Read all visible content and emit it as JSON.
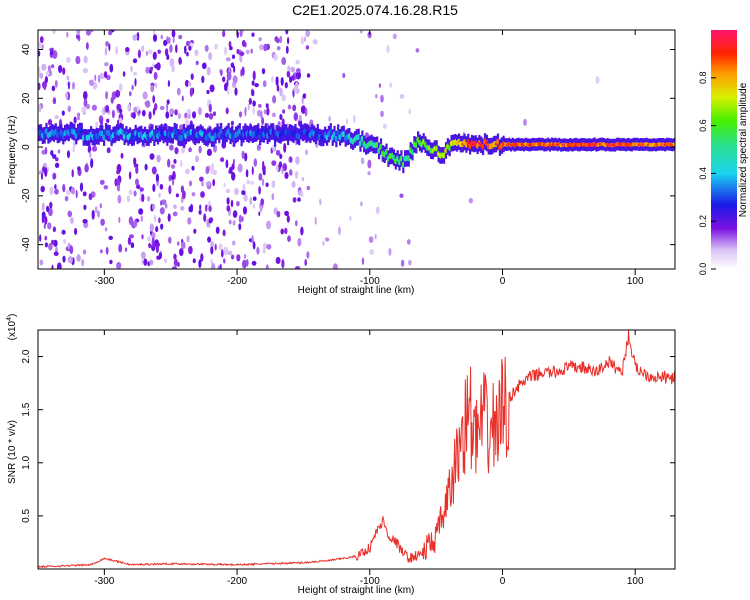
{
  "title": "C2E1.2025.074.16.28.R15",
  "chart_data": [
    {
      "type": "heatmap",
      "xlabel": "Height of straight line (km)",
      "ylabel": "Frequency (Hz)",
      "xlim": [
        -350,
        130
      ],
      "ylim": [
        -50,
        48
      ],
      "xticks": [
        -300,
        -200,
        -100,
        0,
        100
      ],
      "yticks": [
        -40,
        -20,
        0,
        20,
        40
      ],
      "colorbar": {
        "label": "Normalized spectral amplitude",
        "range": [
          0,
          1
        ],
        "ticks": [
          "0.0",
          "0.2",
          "0.4",
          "0.6",
          "0.8"
        ]
      },
      "ridge": {
        "x": [
          -350,
          -300,
          -250,
          -200,
          -150,
          -130,
          -110,
          -95,
          -85,
          -75,
          -65,
          -55,
          -45,
          -35,
          -25,
          -10,
          0,
          50,
          100,
          130
        ],
        "frequency_hz": [
          6,
          5,
          5,
          5,
          5,
          5,
          3,
          0,
          -4,
          -6,
          2,
          0,
          -3,
          3,
          1,
          1,
          1,
          1,
          1,
          1
        ],
        "amplitude": [
          0.35,
          0.4,
          0.38,
          0.35,
          0.3,
          0.4,
          0.5,
          0.55,
          0.6,
          0.55,
          0.6,
          0.65,
          0.7,
          0.75,
          0.95,
          0.9,
          0.85,
          0.9,
          0.9,
          0.85
        ]
      }
    },
    {
      "type": "line",
      "xlabel": "Height of straight line (km)",
      "ylabel": "SNR (10 * v/v)",
      "y_multiplier": "(x10",
      "y_multiplier_exp": "4",
      "y_multiplier_close": ")",
      "xlim": [
        -350,
        130
      ],
      "ylim": [
        0,
        2.25
      ],
      "xticks": [
        -300,
        -200,
        -100,
        0,
        100
      ],
      "yticks": [
        "0.5",
        "1.0",
        "1.5",
        "2.0"
      ],
      "series": [
        {
          "color": "#e8302a",
          "x": [
            -350,
            -310,
            -300,
            -280,
            -250,
            -200,
            -150,
            -130,
            -110,
            -100,
            -95,
            -90,
            -85,
            -80,
            -75,
            -70,
            -60,
            -50,
            -45,
            -40,
            -35,
            -30,
            -25,
            -20,
            -15,
            -10,
            -5,
            0,
            10,
            20,
            30,
            40,
            50,
            60,
            70,
            80,
            90,
            95,
            100,
            110,
            120,
            130
          ],
          "y": [
            0.02,
            0.04,
            0.1,
            0.04,
            0.05,
            0.04,
            0.06,
            0.08,
            0.12,
            0.2,
            0.35,
            0.45,
            0.3,
            0.25,
            0.15,
            0.1,
            0.15,
            0.3,
            0.5,
            0.7,
            1.0,
            1.3,
            1.5,
            1.2,
            1.4,
            1.3,
            1.35,
            1.5,
            1.7,
            1.8,
            1.85,
            1.85,
            1.9,
            1.9,
            1.85,
            1.95,
            1.85,
            2.2,
            1.9,
            1.82,
            1.8,
            1.8
          ]
        }
      ]
    }
  ]
}
